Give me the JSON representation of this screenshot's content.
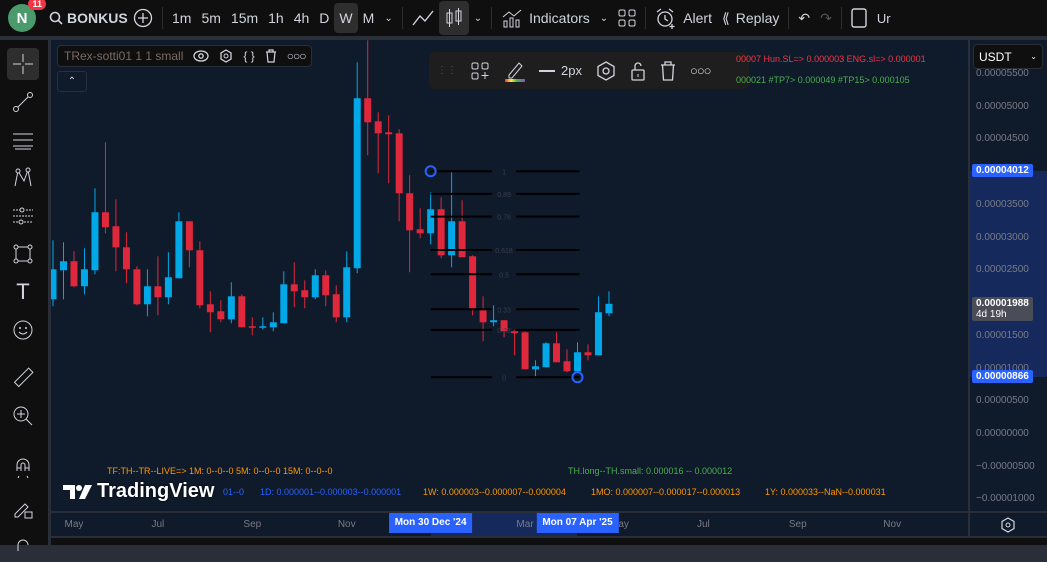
{
  "topbar": {
    "avatar_letter": "N",
    "notifications": "11",
    "symbol": "BONKUSD",
    "intervals": [
      "1m",
      "5m",
      "15m",
      "1h",
      "4h",
      "D",
      "W",
      "M"
    ],
    "active_interval": "W",
    "indicators_label": "Indicators",
    "alert_label": "Alert",
    "replay_label": "Replay",
    "cut_label": "Ur"
  },
  "legend": {
    "title": "TRex-sotti01 1 1 small"
  },
  "drawing_toolbar": {
    "width_label": "2px"
  },
  "currency": "USDT",
  "info_lines": {
    "sl": "00007  Hun.SL=> 0.000003  ENG.sl=> 0.000001",
    "tp": "000021  #TP7> 0.000049  #TP15> 0.000105",
    "tf": "TF:TH--TR--LIVE=>  1M: 0--0--0    5M: 0--0--0    15M: 0--0--0",
    "th": "TH.long--TH.small: 0.000016 -- 0.000012",
    "h1": "01--0",
    "d1": "1D: 0.000001--0.000003--0.000001",
    "w1": "1W: 0.000003--0.000007--0.000004",
    "mo": "1MO: 0.000007--0.000017--0.000013",
    "y1": "1Y: 0.000033--NaN--0.000031"
  },
  "logo_text": "TradingView",
  "colors": {
    "up": "#00a8e8",
    "down": "#e0283c",
    "accent": "#2962ff",
    "sl_text": "#f23645",
    "tp_text": "#4caf50",
    "tf_text": "#ff9800",
    "d_text": "#2962ff"
  },
  "price_axis": {
    "labels": [
      "0.00005500",
      "0.00005000",
      "0.00004500",
      "0.00003500",
      "0.00003000",
      "0.00002500",
      "0.00001500",
      "0.00001000",
      "0.00000500",
      "0.00000000",
      "−0.00000500",
      "−0.00001000"
    ],
    "values": [
      5.5e-05,
      5e-05,
      4.5e-05,
      3.5e-05,
      3e-05,
      2.5e-05,
      1.5e-05,
      1e-05,
      5e-06,
      0,
      -5e-06,
      -1e-05
    ],
    "tags": {
      "high": "0.00004012",
      "last": "0.00001988",
      "countdown": "4d 19h",
      "low": "0.00000866"
    }
  },
  "time_axis": {
    "labels": [
      {
        "t": "May",
        "d": "2024-05-06"
      },
      {
        "t": "Jul",
        "d": "2024-07-01"
      },
      {
        "t": "Sep",
        "d": "2024-09-02"
      },
      {
        "t": "Nov",
        "d": "2024-11-04"
      },
      {
        "t": "Mar",
        "d": "2025-03-03"
      },
      {
        "t": "May",
        "d": "2025-05-05"
      },
      {
        "t": "Jul",
        "d": "2025-06-30"
      },
      {
        "t": "Sep",
        "d": "2025-09-01"
      },
      {
        "t": "Nov",
        "d": "2025-11-03"
      }
    ],
    "range_start": {
      "t": "Mon 30 Dec '24",
      "d": "2024-12-30"
    },
    "range_end": {
      "t": "Mon 07 Apr '25",
      "d": "2025-04-07"
    }
  },
  "chart_data": {
    "type": "candlestick",
    "interval": "W",
    "symbol": "BONKUSD",
    "columns": [
      "date",
      "open",
      "high",
      "low",
      "close"
    ],
    "candles": [
      [
        "2024-04-22",
        2.057e-05,
        2.958e-05,
        1.95e-05,
        2.515e-05
      ],
      [
        "2024-04-29",
        2.5e-05,
        2.928e-05,
        2.057e-05,
        2.638e-05
      ],
      [
        "2024-05-06",
        2.638e-05,
        2.79e-05,
        2.241e-05,
        2.256e-05
      ],
      [
        "2024-05-13",
        2.256e-05,
        2.836e-05,
        2.134e-05,
        2.515e-05
      ],
      [
        "2024-05-20",
        2.5e-05,
        3.752e-05,
        2.439e-05,
        3.386e-05
      ],
      [
        "2024-05-27",
        3.386e-05,
        4.455e-05,
        3.065e-05,
        3.157e-05
      ],
      [
        "2024-06-03",
        3.172e-05,
        3.584e-05,
        2.485e-05,
        2.851e-05
      ],
      [
        "2024-06-10",
        2.851e-05,
        3.08e-05,
        2.302e-05,
        2.515e-05
      ],
      [
        "2024-06-17",
        2.515e-05,
        2.561e-05,
        1.966e-05,
        1.981e-05
      ],
      [
        "2024-06-24",
        1.981e-05,
        2.515e-05,
        1.798e-05,
        2.256e-05
      ],
      [
        "2024-07-01",
        2.256e-05,
        2.714e-05,
        1.813e-05,
        2.088e-05
      ],
      [
        "2024-07-08",
        2.088e-05,
        2.775e-05,
        1.981e-05,
        2.393e-05
      ],
      [
        "2024-07-15",
        2.378e-05,
        3.386e-05,
        2.378e-05,
        3.248e-05
      ],
      [
        "2024-07-22",
        3.248e-05,
        3.248e-05,
        2.546e-05,
        2.805e-05
      ],
      [
        "2024-07-29",
        2.805e-05,
        2.943e-05,
        1.92e-05,
        1.966e-05
      ],
      [
        "2024-08-05",
        1.981e-05,
        2.179e-05,
        1.553e-05,
        1.859e-05
      ],
      [
        "2024-08-12",
        1.874e-05,
        2.042e-05,
        1.706e-05,
        1.752e-05
      ],
      [
        "2024-08-19",
        1.752e-05,
        2.317e-05,
        1.691e-05,
        2.103e-05
      ],
      [
        "2024-08-26",
        2.103e-05,
        2.134e-05,
        1.63e-05,
        1.63e-05
      ],
      [
        "2024-09-02",
        1.645e-05,
        1.782e-05,
        1.508e-05,
        1.63e-05
      ],
      [
        "2024-09-09",
        1.63e-05,
        1.782e-05,
        1.599e-05,
        1.645e-05
      ],
      [
        "2024-09-16",
        1.63e-05,
        1.859e-05,
        1.569e-05,
        1.706e-05
      ],
      [
        "2024-09-23",
        1.691e-05,
        2.485e-05,
        1.691e-05,
        2.286e-05
      ],
      [
        "2024-09-30",
        2.286e-05,
        2.622e-05,
        1.935e-05,
        2.179e-05
      ],
      [
        "2024-10-07",
        2.195e-05,
        2.347e-05,
        1.92e-05,
        2.088e-05
      ],
      [
        "2024-10-14",
        2.088e-05,
        2.515e-05,
        2.057e-05,
        2.424e-05
      ],
      [
        "2024-10-21",
        2.424e-05,
        2.5e-05,
        1.95e-05,
        2.118e-05
      ],
      [
        "2024-10-28",
        2.134e-05,
        2.271e-05,
        1.706e-05,
        1.782e-05
      ],
      [
        "2024-11-04",
        1.782e-05,
        2.79e-05,
        1.706e-05,
        2.546e-05
      ],
      [
        "2024-11-11",
        2.531e-05,
        5.676e-05,
        2.454e-05,
        5.127e-05
      ],
      [
        "2024-11-18",
        5.127e-05,
        6.012e-05,
        4.256e-05,
        4.76e-05
      ],
      [
        "2024-11-25",
        4.775e-05,
        4.913e-05,
        3.981e-05,
        4.592e-05
      ],
      [
        "2024-12-02",
        4.607e-05,
        4.867e-05,
        3.829e-05,
        4.577e-05
      ],
      [
        "2024-12-09",
        4.592e-05,
        4.653e-05,
        3.248e-05,
        3.676e-05
      ],
      [
        "2024-12-16",
        3.676e-05,
        3.951e-05,
        2.47e-05,
        3.111e-05
      ],
      [
        "2024-12-23",
        3.126e-05,
        3.447e-05,
        2.989e-05,
        3.065e-05
      ],
      [
        "2024-12-30",
        3.065e-05,
        3.691e-05,
        2.897e-05,
        3.432e-05
      ],
      [
        "2025-01-06",
        3.432e-05,
        3.615e-05,
        2.683e-05,
        2.729e-05
      ],
      [
        "2025-01-13",
        2.729e-05,
        3.997e-05,
        2.546e-05,
        3.248e-05
      ],
      [
        "2025-01-20",
        3.248e-05,
        3.569e-05,
        2.699e-05,
        2.699e-05
      ],
      [
        "2025-01-27",
        2.714e-05,
        2.729e-05,
        1.813e-05,
        1.92e-05
      ],
      [
        "2025-02-03",
        1.889e-05,
        2.103e-05,
        1.416e-05,
        1.706e-05
      ],
      [
        "2025-02-10",
        1.706e-05,
        1.966e-05,
        1.645e-05,
        1.737e-05
      ],
      [
        "2025-02-17",
        1.737e-05,
        1.737e-05,
        1.477e-05,
        1.569e-05
      ],
      [
        "2025-02-24",
        1.569e-05,
        1.584e-05,
        1.202e-05,
        1.538e-05
      ],
      [
        "2025-03-03",
        1.553e-05,
        1.569e-05,
        9.88e-06,
        9.88e-06
      ],
      [
        "2025-03-10",
        9.88e-06,
        1.126e-05,
        8.81e-06,
        1.034e-05
      ],
      [
        "2025-03-17",
        1.019e-05,
        1.401e-05,
        1.019e-05,
        1.385e-05
      ],
      [
        "2025-03-24",
        1.385e-05,
        1.553e-05,
        1.095e-05,
        1.095e-05
      ],
      [
        "2025-03-31",
        1.111e-05,
        1.294e-05,
        9.43e-06,
        9.58e-06
      ],
      [
        "2025-04-07",
        9.58e-06,
        1.401e-05,
        9.58e-06,
        1.248e-05
      ],
      [
        "2025-04-14",
        1.248e-05,
        1.37e-05,
        1.126e-05,
        1.202e-05
      ],
      [
        "2025-04-21",
        1.202e-05,
        2.103e-05,
        1.202e-05,
        1.859e-05
      ],
      [
        "2025-04-28",
        1.843e-05,
        2.179e-05,
        1.798e-05,
        1.988e-05
      ]
    ],
    "fibonacci": {
      "from": {
        "date": "2024-12-30",
        "price": 4.012e-05
      },
      "to": {
        "date": "2025-04-07",
        "price": 8.66e-06
      },
      "levels": [
        1,
        0.89,
        0.78,
        0.618,
        0.5,
        0.33,
        0.23,
        0
      ],
      "level_labels": [
        "1",
        "0.89",
        "0.78",
        "0.618",
        "0.5",
        "0.33",
        "0.23",
        "0"
      ]
    },
    "ylim": [
      -1.05e-05,
      6.12e-05
    ]
  }
}
